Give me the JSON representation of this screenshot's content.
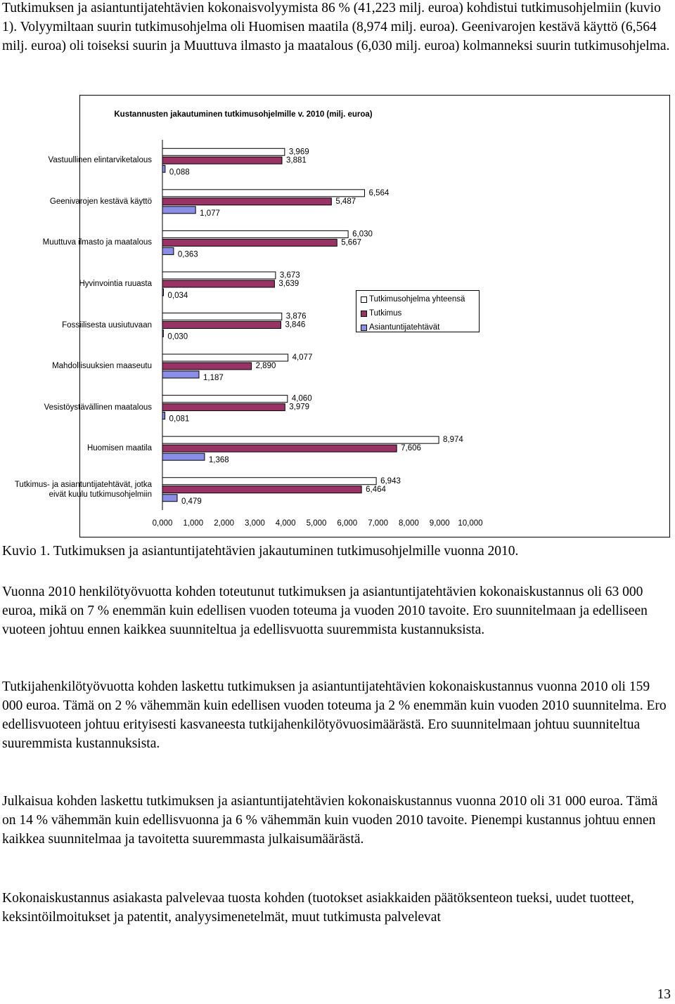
{
  "intro": "Tutkimuksen ja asiantuntijatehtävien kokonaisvolyymista 86 % (41,223 milj. euroa) kohdistui tutkimusohjelmiin (kuvio 1). Volyymiltaan suurin tutkimusohjelma oli Huomisen maatila (8,974 milj. euroa). Geenivarojen kestävä käyttö (6,564 milj. euroa) oli toiseksi suurin ja Muuttuva ilmasto ja maatalous (6,030 milj. euroa) kolmanneksi suurin tutkimusohjelma.",
  "chart_data": {
    "type": "barh",
    "title": "Kustannusten jakautuminen tutkimusohjelmille v. 2010 (milj. euroa)",
    "categories": [
      "Vastuullinen elintarviketalous",
      "Geenivarojen kestävä käyttö",
      "Muuttuva ilmasto ja maatalous",
      "Hyvinvointia ruuasta",
      "Fossiilisesta uusiutuvaan",
      "Mahdollisuuksien maaseutu",
      "Vesistöystävällinen maatalous",
      "Huomisen maatila",
      "Tutkimus- ja asiantuntijatehtävät, jotka eivät kuulu tutkimusohjelmiin"
    ],
    "series": [
      {
        "name": "Tutkimusohjelma yhteensä",
        "color": "#ffffff",
        "values": [
          3.969,
          6.564,
          6.03,
          3.673,
          3.876,
          4.077,
          4.06,
          8.974,
          6.943
        ],
        "value_labels": [
          "3,969",
          "6,564",
          "6,030",
          "3,673",
          "3,876",
          "4,077",
          "4,060",
          "8,974",
          "6,943"
        ]
      },
      {
        "name": "Tutkimus",
        "color": "#993366",
        "values": [
          3.881,
          5.487,
          5.667,
          3.639,
          3.846,
          2.89,
          3.979,
          7.606,
          6.464
        ],
        "value_labels": [
          "3,881",
          "5,487",
          "5,667",
          "3,639",
          "3,846",
          "2,890",
          "3,979",
          "7,606",
          "6,464"
        ]
      },
      {
        "name": "Asiantuntijatehtävät",
        "color": "#8a8ee6",
        "values": [
          0.088,
          1.077,
          0.363,
          0.034,
          0.03,
          1.187,
          0.081,
          1.368,
          0.479
        ],
        "value_labels": [
          "0,088",
          "1,077",
          "0,363",
          "0,034",
          "0,030",
          "1,187",
          "0,081",
          "1,368",
          "0,479"
        ]
      }
    ],
    "xlim": [
      0,
      10
    ],
    "xticks": [
      {
        "value": 0,
        "label": "0,000"
      },
      {
        "value": 1,
        "label": "1,000"
      },
      {
        "value": 2,
        "label": "2,000"
      },
      {
        "value": 3,
        "label": "3,000"
      },
      {
        "value": 4,
        "label": "4,000"
      },
      {
        "value": 5,
        "label": "5,000"
      },
      {
        "value": 6,
        "label": "6,000"
      },
      {
        "value": 7,
        "label": "7,000"
      },
      {
        "value": 8,
        "label": "8,000"
      },
      {
        "value": 9,
        "label": "9,000"
      },
      {
        "value": 10,
        "label": "10,000"
      }
    ]
  },
  "caption": "Kuvio 1. Tutkimuksen ja asiantuntijatehtävien jakautuminen tutkimusohjelmille vuonna 2010.",
  "paragraphs": [
    "Vuonna 2010 henkilötyövuotta kohden toteutunut tutkimuksen ja asiantuntijatehtävien kokonais­kustannus oli 63 000 euroa, mikä on 7 % enemmän kuin edellisen vuoden toteuma ja vuoden 2010 tavoite. Ero suunnitelmaan ja edelliseen vuoteen johtuu ennen kaikkea suunniteltua ja edellisvuotta suuremmista kustannuksista.",
    "Tutkijahenkilötyövuotta kohden laskettu tutkimuksen ja asiantuntijatehtävien kokonaiskustannus vuonna 2010 oli 159 000 euroa. Tämä on 2 % vähemmän kuin edellisen vuoden toteuma ja 2 % enemmän kuin vuoden 2010 suunnitelma. Ero edellisvuoteen johtuu erityisesti kasvaneesta tutkijahenkilötyövuosimäärästä. Ero suunnitelmaan johtuu suunniteltua suuremmista kustannuksista.",
    "Julkaisua kohden laskettu tutkimuksen ja asiantuntijatehtävien kokonaiskustannus vuonna 2010 oli 31 000 euroa. Tämä on 14 % vähemmän kuin edellisvuonna ja 6 % vähemmän kuin vuoden 2010 tavoite. Pienempi kustannus johtuu ennen kaikkea suunnitelmaa ja tavoitetta suuremmasta julkaisumäärästä.",
    "Kokonaiskustannus asiakasta palvelevaa tuosta kohden (tuotokset asiakkaiden päätöksenteon tueksi, uudet tuotteet, keksintöilmoitukset ja patentit, analyysimenetelmät, muut tutkimusta palvelevat"
  ],
  "page_number": "13"
}
